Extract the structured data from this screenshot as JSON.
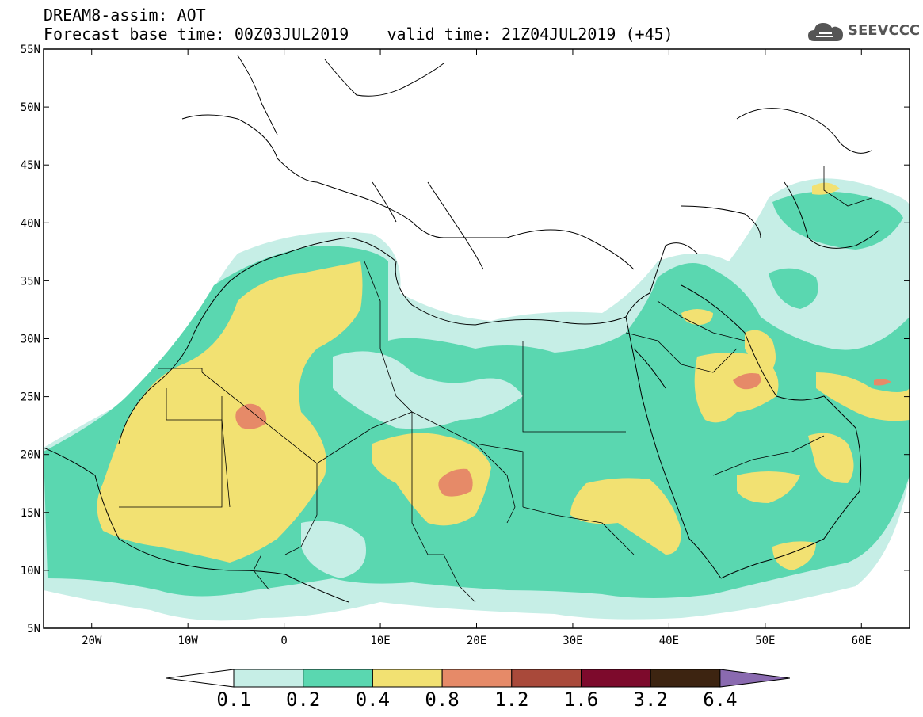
{
  "header": {
    "title": "DREAM8-assim: AOT",
    "base_time": "Forecast base time: 00Z03JUL2019",
    "valid_time": "valid time: 21Z04JUL2019 (+45)"
  },
  "logo": {
    "text": "SEEVCCC",
    "icon": "cloud-icon",
    "color": "#555555"
  },
  "map": {
    "lon_range": [
      -25,
      65
    ],
    "lat_range": [
      5,
      55
    ],
    "x_ticks": [
      {
        "value": -20,
        "label": "20W"
      },
      {
        "value": -10,
        "label": "10W"
      },
      {
        "value": 0,
        "label": "0"
      },
      {
        "value": 10,
        "label": "10E"
      },
      {
        "value": 20,
        "label": "20E"
      },
      {
        "value": 30,
        "label": "30E"
      },
      {
        "value": 40,
        "label": "40E"
      },
      {
        "value": 50,
        "label": "50E"
      },
      {
        "value": 60,
        "label": "60E"
      }
    ],
    "y_ticks": [
      {
        "value": 5,
        "label": "5N"
      },
      {
        "value": 10,
        "label": "10N"
      },
      {
        "value": 15,
        "label": "15N"
      },
      {
        "value": 20,
        "label": "20N"
      },
      {
        "value": 25,
        "label": "25N"
      },
      {
        "value": 30,
        "label": "30N"
      },
      {
        "value": 35,
        "label": "35N"
      },
      {
        "value": 40,
        "label": "40N"
      },
      {
        "value": 45,
        "label": "45N"
      },
      {
        "value": 50,
        "label": "50N"
      },
      {
        "value": 55,
        "label": "55N"
      }
    ]
  },
  "colorbar": {
    "colors": [
      "#ffffff",
      "#c6eee6",
      "#5ad7b0",
      "#f2e172",
      "#e68a68",
      "#a9493a",
      "#7d0a2c",
      "#3d2411",
      "#8a6ab0"
    ],
    "labels": [
      "0.1",
      "0.2",
      "0.4",
      "0.8",
      "1.2",
      "1.6",
      "3.2",
      "6.4"
    ]
  }
}
